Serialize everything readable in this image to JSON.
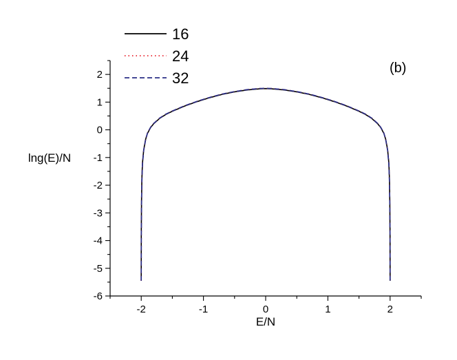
{
  "chart_data": {
    "type": "line",
    "panel_label": "(b)",
    "xlabel": "E/N",
    "ylabel": "lng(E)/N",
    "xlim": [
      -2.5,
      2.5
    ],
    "ylim": [
      -6,
      2.5
    ],
    "xticks": [
      -2,
      -1,
      0,
      1,
      2
    ],
    "yticks": [
      -6,
      -5,
      -4,
      -3,
      -2,
      -1,
      0,
      1,
      2
    ],
    "grid": false,
    "legend_position": "top-left",
    "series": [
      {
        "name": "16",
        "color": "#000000",
        "dash": "solid",
        "x": [
          -2.0,
          -1.999,
          -1.995,
          -1.99,
          -1.98,
          -1.96,
          -1.93,
          -1.9,
          -1.85,
          -1.8,
          -1.7,
          -1.6,
          -1.5,
          -1.3,
          -1.1,
          -0.9,
          -0.7,
          -0.5,
          -0.3,
          -0.1,
          0.0,
          0.1,
          0.3,
          0.5,
          0.7,
          0.9,
          1.1,
          1.3,
          1.5,
          1.6,
          1.7,
          1.8,
          1.85,
          1.9,
          1.93,
          1.96,
          1.98,
          1.99,
          1.995,
          1.999,
          2.0
        ],
        "y": [
          -5.45,
          -3.7,
          -2.6,
          -1.8,
          -1.2,
          -0.72,
          -0.35,
          -0.13,
          0.08,
          0.22,
          0.42,
          0.56,
          0.67,
          0.86,
          1.02,
          1.16,
          1.28,
          1.37,
          1.44,
          1.48,
          1.49,
          1.48,
          1.44,
          1.37,
          1.28,
          1.16,
          1.02,
          0.86,
          0.67,
          0.56,
          0.42,
          0.22,
          0.08,
          -0.13,
          -0.35,
          -0.72,
          -1.2,
          -1.8,
          -2.6,
          -3.7,
          -5.45
        ]
      },
      {
        "name": "24",
        "color": "#e8202a",
        "dash": "dotted",
        "x": [
          -2.0,
          -1.999,
          -1.995,
          -1.99,
          -1.98,
          -1.96,
          -1.93,
          -1.9,
          -1.85,
          -1.8,
          -1.7,
          -1.6,
          -1.5,
          -1.3,
          -1.1,
          -0.9,
          -0.7,
          -0.5,
          -0.3,
          -0.1,
          0.0,
          0.1,
          0.3,
          0.5,
          0.7,
          0.9,
          1.1,
          1.3,
          1.5,
          1.6,
          1.7,
          1.8,
          1.85,
          1.9,
          1.93,
          1.96,
          1.98,
          1.99,
          1.995,
          1.999,
          2.0
        ],
        "y": [
          -5.45,
          -3.75,
          -2.65,
          -1.85,
          -1.22,
          -0.73,
          -0.35,
          -0.12,
          0.09,
          0.23,
          0.43,
          0.57,
          0.68,
          0.87,
          1.03,
          1.17,
          1.29,
          1.38,
          1.45,
          1.49,
          1.5,
          1.49,
          1.45,
          1.38,
          1.29,
          1.17,
          1.03,
          0.87,
          0.68,
          0.57,
          0.43,
          0.23,
          0.09,
          -0.12,
          -0.35,
          -0.73,
          -1.22,
          -1.85,
          -2.65,
          -3.75,
          -5.45
        ]
      },
      {
        "name": "32",
        "color": "#2a2f86",
        "dash": "dashed",
        "x": [
          -2.0,
          -1.999,
          -1.995,
          -1.99,
          -1.98,
          -1.96,
          -1.93,
          -1.9,
          -1.85,
          -1.8,
          -1.7,
          -1.6,
          -1.5,
          -1.3,
          -1.1,
          -0.9,
          -0.7,
          -0.5,
          -0.3,
          -0.1,
          0.0,
          0.1,
          0.3,
          0.5,
          0.7,
          0.9,
          1.1,
          1.3,
          1.5,
          1.6,
          1.7,
          1.8,
          1.85,
          1.9,
          1.93,
          1.96,
          1.98,
          1.99,
          1.995,
          1.999,
          2.0
        ],
        "y": [
          -5.45,
          -3.8,
          -2.7,
          -1.9,
          -1.25,
          -0.74,
          -0.36,
          -0.12,
          0.09,
          0.23,
          0.43,
          0.57,
          0.68,
          0.87,
          1.03,
          1.17,
          1.29,
          1.38,
          1.45,
          1.49,
          1.5,
          1.49,
          1.45,
          1.38,
          1.29,
          1.17,
          1.03,
          0.87,
          0.68,
          0.57,
          0.43,
          0.23,
          0.09,
          -0.12,
          -0.36,
          -0.74,
          -1.25,
          -1.9,
          -2.7,
          -3.8,
          -5.45
        ]
      }
    ]
  }
}
